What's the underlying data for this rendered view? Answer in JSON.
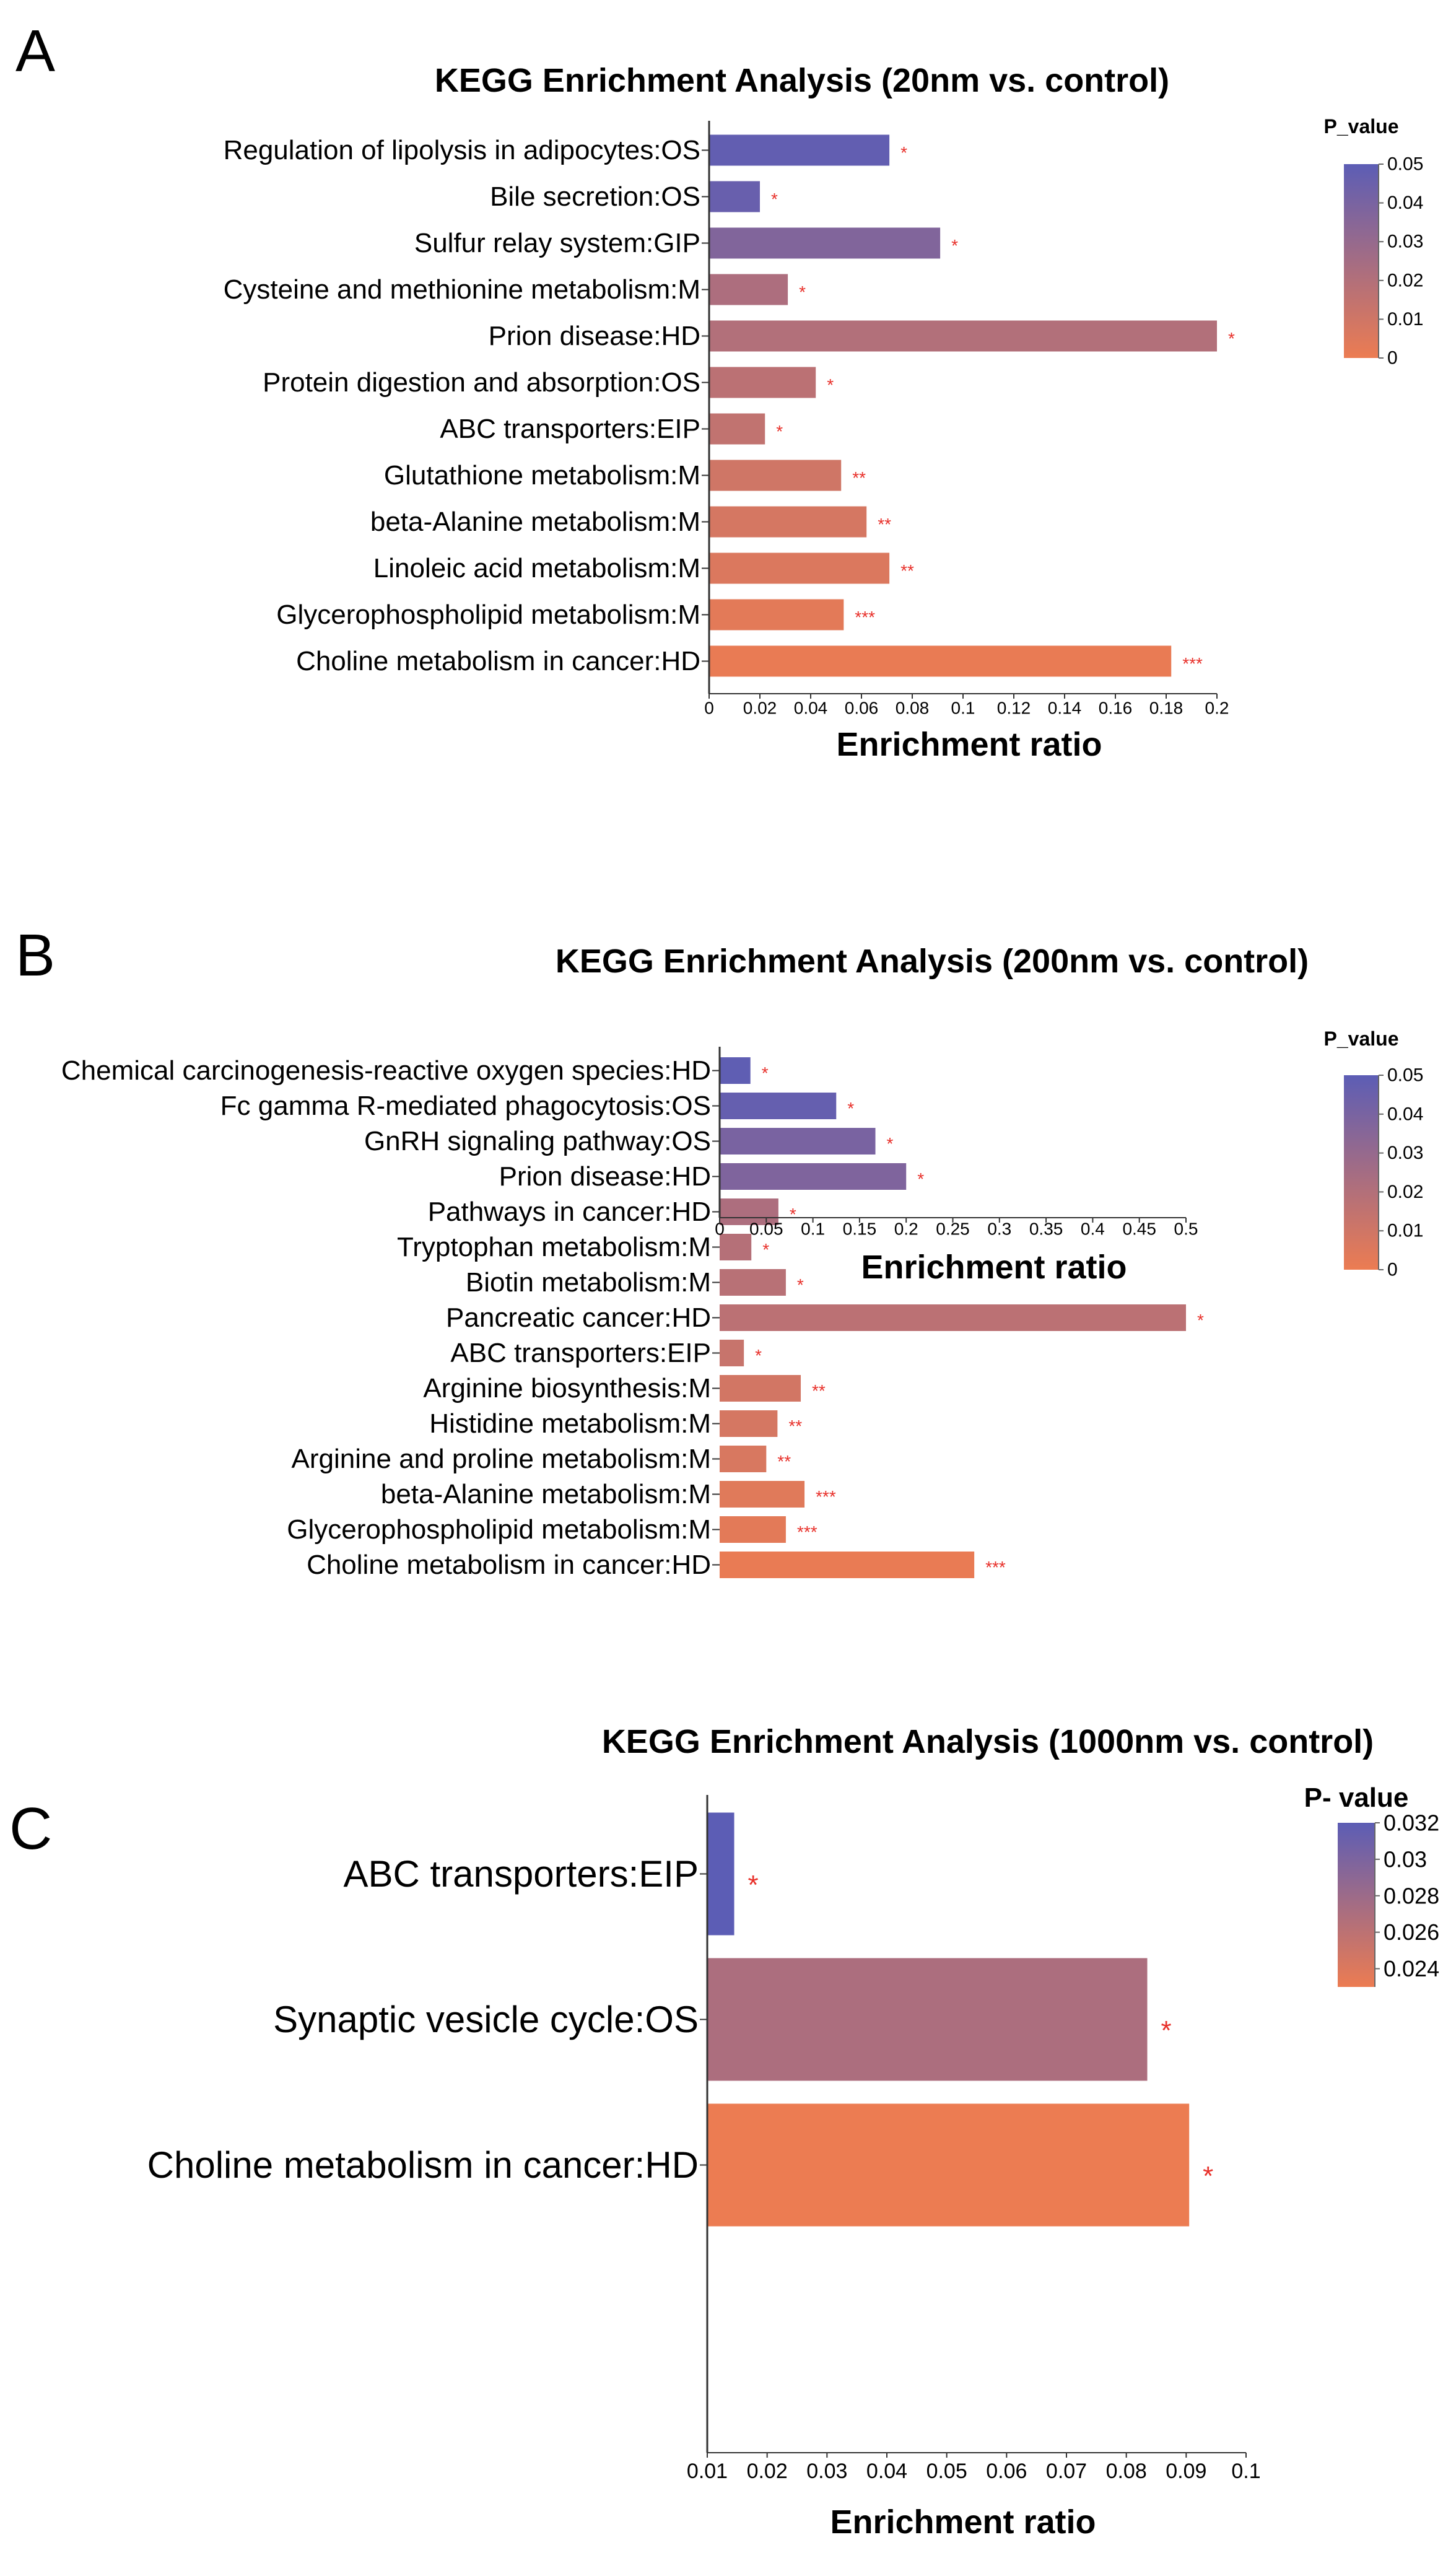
{
  "colors": {
    "low": "#ec7c52",
    "high": "#5c5db5",
    "axis": "#333333",
    "star": "#e8302a"
  },
  "chart_data": [
    {
      "type": "bar",
      "panel_label": "A",
      "title": "KEGG Enrichment Analysis   (20nm  vs. control)",
      "xlabel": "Enrichment ratio",
      "ylabel": "",
      "xlim": [
        0,
        0.2
      ],
      "xticks": [
        0,
        0.02,
        0.04,
        0.06,
        0.08,
        0.1,
        0.12,
        0.14,
        0.16,
        0.18,
        0.2
      ],
      "xtick_labels": [
        "0",
        "0.02",
        "0.04",
        "0.06",
        "0.08",
        "0.1",
        "0.12",
        "0.14",
        "0.16",
        "0.18",
        "0.2"
      ],
      "legend_title": "P_value",
      "legend_range": [
        0,
        0.05
      ],
      "legend_ticks": [
        0.05,
        0.04,
        0.03,
        0.02,
        0.01,
        0
      ],
      "legend_tick_labels": [
        "0.05",
        "0.04",
        "0.03",
        "0.02",
        "0.01",
        "0"
      ],
      "legend_position": "right",
      "categories": [
        "Regulation of lipolysis in adipocytes:OS",
        "Bile secretion:OS",
        "Sulfur relay system:GIP",
        "Cysteine and methionine metabolism:M",
        "Prion disease:HD",
        "Protein digestion and absorption:OS",
        "ABC transporters:EIP",
        "Glutathione metabolism:M",
        "beta-Alanine metabolism:M",
        "Linoleic acid metabolism:M",
        "Glycerophospholipid metabolism:M",
        "Choline metabolism in cancer:HD"
      ],
      "values": [
        0.071,
        0.02,
        0.091,
        0.031,
        0.2,
        0.042,
        0.022,
        0.052,
        0.062,
        0.071,
        0.053,
        0.182
      ],
      "p_values": [
        0.048,
        0.046,
        0.037,
        0.022,
        0.02,
        0.017,
        0.015,
        0.01,
        0.008,
        0.006,
        0.003,
        0.001
      ],
      "significance": [
        "*",
        "*",
        "*",
        "*",
        "*",
        "*",
        "*",
        "**",
        "**",
        "**",
        "***",
        "***"
      ]
    },
    {
      "type": "bar",
      "panel_label": "B",
      "title": "KEGG Enrichment Analysis   (200nm  vs. control)",
      "xlabel": "Enrichment ratio",
      "ylabel": "",
      "xlim": [
        0,
        0.5
      ],
      "xticks": [
        0,
        0.05,
        0.1,
        0.15,
        0.2,
        0.25,
        0.3,
        0.35,
        0.4,
        0.45,
        0.5
      ],
      "xtick_labels": [
        "0",
        "0.05",
        "0.1",
        "0.15",
        "0.2",
        "0.25",
        "0.3",
        "0.35",
        "0.4",
        "0.45",
        "0.5"
      ],
      "legend_title": "P_value",
      "legend_range": [
        0,
        0.05
      ],
      "legend_ticks": [
        0.05,
        0.04,
        0.03,
        0.02,
        0.01,
        0
      ],
      "legend_tick_labels": [
        "0.05",
        "0.04",
        "0.03",
        "0.02",
        "0.01",
        "0"
      ],
      "legend_position": "right",
      "categories": [
        "Chemical carcinogenesis-reactive oxygen species:HD",
        "Fc gamma R-mediated phagocytosis:OS",
        "GnRH signaling pathway:OS",
        "Prion disease:HD",
        "Pathways in cancer:HD",
        "Tryptophan metabolism:M",
        "Biotin metabolism:M",
        "Pancreatic cancer:HD",
        "ABC transporters:EIP",
        "Arginine biosynthesis:M",
        "Histidine metabolism:M",
        "Arginine and proline metabolism:M",
        "beta-Alanine metabolism:M",
        "Glycerophospholipid metabolism:M",
        "Choline metabolism in cancer:HD"
      ],
      "values": [
        0.033,
        0.125,
        0.167,
        0.2,
        0.063,
        0.034,
        0.071,
        0.5,
        0.026,
        0.087,
        0.062,
        0.05,
        0.091,
        0.071,
        0.273
      ],
      "p_values": [
        0.049,
        0.047,
        0.04,
        0.038,
        0.022,
        0.019,
        0.018,
        0.017,
        0.013,
        0.009,
        0.008,
        0.007,
        0.004,
        0.003,
        0.001
      ],
      "significance": [
        "*",
        "*",
        "*",
        "*",
        "*",
        "*",
        "*",
        "*",
        "*",
        "**",
        "**",
        "**",
        "***",
        "***",
        "***"
      ]
    },
    {
      "type": "bar",
      "panel_label": "C",
      "title": "KEGG Enrichment Analysis   (1000nm  vs. control)",
      "xlabel": "Enrichment ratio",
      "ylabel": "",
      "xlim": [
        0.01,
        0.1
      ],
      "xticks": [
        0.01,
        0.02,
        0.03,
        0.04,
        0.05,
        0.06,
        0.07,
        0.08,
        0.09,
        0.1
      ],
      "xtick_labels": [
        "0.01",
        "0.02",
        "0.03",
        "0.04",
        "0.05",
        "0.06",
        "0.07",
        "0.08",
        "0.09",
        "0.1"
      ],
      "legend_title": "P- value",
      "legend_range": [
        0.023,
        0.032
      ],
      "legend_ticks": [
        0.032,
        0.03,
        0.028,
        0.026,
        0.024
      ],
      "legend_tick_labels": [
        "0.032",
        "0.03",
        "0.028",
        "0.026",
        "0.024"
      ],
      "legend_position": "right",
      "categories": [
        "ABC transporters:EIP",
        "Synaptic vesicle cycle:OS",
        "Choline metabolism in cancer:HD"
      ],
      "values": [
        0.0145,
        0.0835,
        0.0905
      ],
      "p_values": [
        0.032,
        0.027,
        0.023
      ],
      "significance": [
        "*",
        "*",
        "*"
      ]
    }
  ]
}
